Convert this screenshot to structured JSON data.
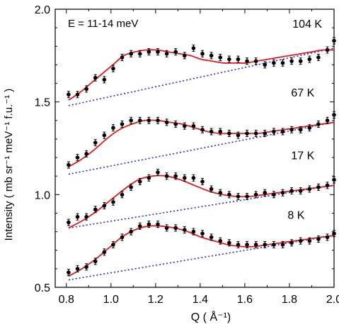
{
  "chart_data": {
    "type": "scatter",
    "annotation": "E = 11-14 meV",
    "xlabel": "Q  ( Å⁻¹)",
    "ylabel": "Intensity ( mb sr⁻¹ meV⁻¹ f.u.⁻¹ )",
    "xlim": [
      0.75,
      2.0
    ],
    "ylim": [
      0.5,
      2.0
    ],
    "xticks": [
      0.8,
      1.0,
      1.2,
      1.4,
      1.6,
      1.8,
      2.0
    ],
    "xtick_labels": [
      "0.8",
      "1.0",
      "1.2",
      "1.4",
      "1.6",
      "1.8",
      "2.0"
    ],
    "yticks": [
      0.5,
      1.0,
      1.5,
      2.0
    ],
    "ytick_labels": [
      "0.5",
      "1.0",
      "1.5",
      "2.0"
    ],
    "grid": false,
    "legend": "none",
    "colors": {
      "data": "#000000",
      "fit": "#e41a1c",
      "background": "#1f2ad6"
    },
    "x": [
      0.81,
      0.85,
      0.89,
      0.93,
      0.97,
      1.01,
      1.05,
      1.09,
      1.13,
      1.17,
      1.21,
      1.25,
      1.29,
      1.33,
      1.37,
      1.41,
      1.45,
      1.49,
      1.53,
      1.57,
      1.61,
      1.65,
      1.69,
      1.73,
      1.77,
      1.81,
      1.85,
      1.89,
      1.93,
      1.97,
      2.0
    ],
    "series": [
      {
        "name": "104 K",
        "values": [
          1.54,
          1.54,
          1.57,
          1.63,
          1.62,
          1.68,
          1.74,
          1.76,
          1.76,
          1.77,
          1.77,
          1.76,
          1.77,
          1.75,
          1.79,
          1.76,
          1.75,
          1.74,
          1.73,
          1.73,
          1.72,
          1.72,
          1.7,
          1.71,
          1.71,
          1.72,
          1.72,
          1.73,
          1.74,
          1.78,
          1.83
        ],
        "fit": [
          1.51,
          1.55,
          1.6,
          1.65,
          1.7,
          1.75,
          1.77,
          1.78,
          1.78,
          1.77,
          1.76,
          1.75,
          1.73,
          1.72,
          1.71,
          1.71,
          1.71,
          1.72,
          1.73,
          1.74,
          1.75,
          1.76,
          1.77,
          1.78,
          1.78
        ],
        "background": [
          1.48,
          1.79
        ]
      },
      {
        "name": "67 K",
        "values": [
          1.16,
          1.2,
          1.22,
          1.28,
          1.32,
          1.36,
          1.38,
          1.4,
          1.4,
          1.4,
          1.4,
          1.39,
          1.38,
          1.37,
          1.37,
          1.35,
          1.34,
          1.34,
          1.33,
          1.32,
          1.33,
          1.33,
          1.33,
          1.34,
          1.34,
          1.35,
          1.35,
          1.36,
          1.38,
          1.4,
          1.43
        ],
        "fit": [
          1.15,
          1.19,
          1.24,
          1.3,
          1.35,
          1.38,
          1.4,
          1.4,
          1.39,
          1.38,
          1.36,
          1.34,
          1.33,
          1.33,
          1.33,
          1.33,
          1.34,
          1.35,
          1.36,
          1.37,
          1.38,
          1.39
        ],
        "background": [
          1.11,
          1.39
        ]
      },
      {
        "name": "17 K",
        "values": [
          0.85,
          0.88,
          0.88,
          0.92,
          0.94,
          0.96,
          1.0,
          1.04,
          1.07,
          1.09,
          1.12,
          1.1,
          1.1,
          1.09,
          1.09,
          1.07,
          1.03,
          1.01,
          1.0,
          0.99,
          0.99,
          1.0,
          1.01,
          1.0,
          1.01,
          1.02,
          1.02,
          1.03,
          1.04,
          1.05,
          1.08
        ],
        "fit": [
          0.82,
          0.86,
          0.91,
          0.97,
          1.03,
          1.08,
          1.1,
          1.1,
          1.08,
          1.05,
          1.02,
          1.0,
          0.99,
          0.99,
          1.0,
          1.01,
          1.02,
          1.03,
          1.04,
          1.05
        ],
        "background": [
          0.82,
          1.05
        ]
      },
      {
        "name": "8 K",
        "values": [
          0.58,
          0.6,
          0.61,
          0.64,
          0.69,
          0.73,
          0.77,
          0.8,
          0.83,
          0.84,
          0.84,
          0.82,
          0.82,
          0.81,
          0.8,
          0.79,
          0.77,
          0.75,
          0.74,
          0.73,
          0.73,
          0.73,
          0.73,
          0.73,
          0.73,
          0.74,
          0.75,
          0.75,
          0.76,
          0.77,
          0.79
        ],
        "fit": [
          0.56,
          0.6,
          0.65,
          0.71,
          0.77,
          0.81,
          0.83,
          0.83,
          0.82,
          0.8,
          0.77,
          0.75,
          0.73,
          0.72,
          0.72,
          0.73,
          0.74,
          0.75,
          0.76,
          0.77,
          0.78
        ],
        "background": [
          0.54,
          0.78
        ]
      }
    ]
  }
}
